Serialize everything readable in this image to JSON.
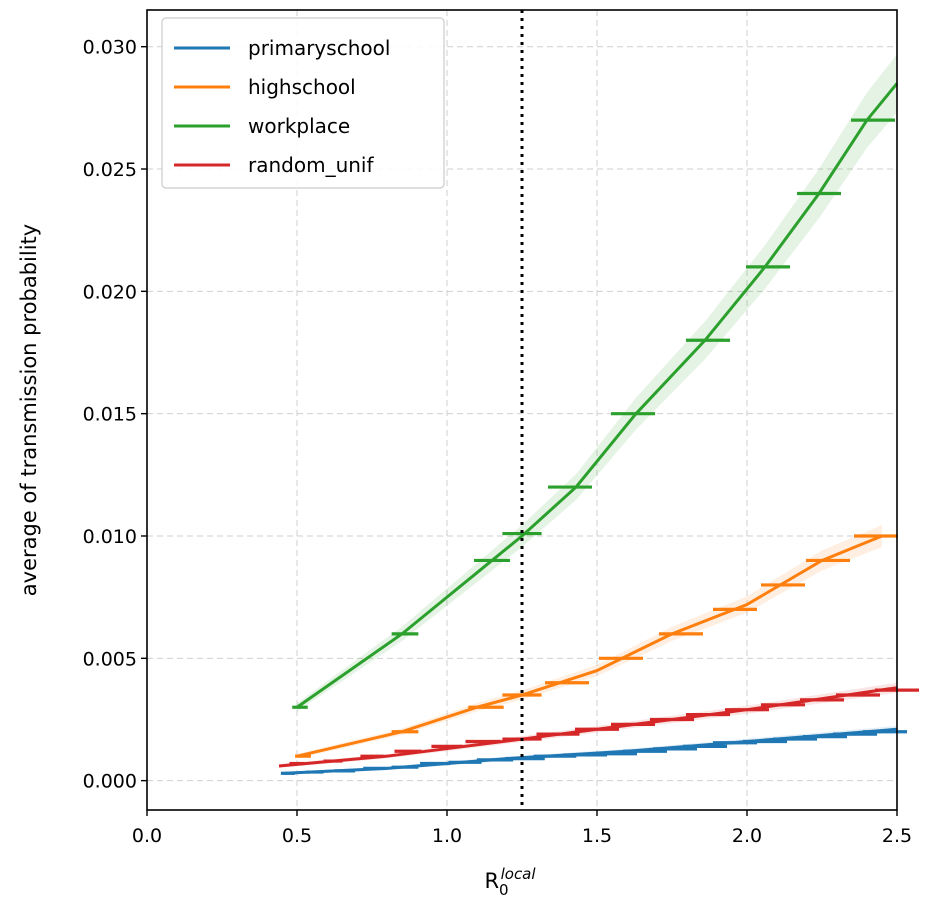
{
  "chart_data": {
    "type": "line",
    "xlabel": "R",
    "xlabel_sub": "0",
    "xlabel_sup": "local",
    "ylabel": "average of transmission probability",
    "xlim": [
      0.0,
      2.5
    ],
    "ylim": [
      -0.0012,
      0.0315
    ],
    "x_ticks": [
      0.0,
      0.5,
      1.0,
      1.5,
      2.0,
      2.5
    ],
    "x_tick_labels": [
      "0.0",
      "0.5",
      "1.0",
      "1.5",
      "2.0",
      "2.5"
    ],
    "y_ticks": [
      0.0,
      0.005,
      0.01,
      0.015,
      0.02,
      0.025,
      0.03
    ],
    "y_tick_labels": [
      "0.000",
      "0.005",
      "0.010",
      "0.015",
      "0.020",
      "0.025",
      "0.030"
    ],
    "grid": true,
    "legend_position": "top-left",
    "vline": {
      "x": 1.25,
      "style": "dotted",
      "color": "#000000"
    },
    "series": [
      {
        "name": "primaryschool",
        "color": "#1f77b4",
        "line": [
          [
            0.46,
            0.0003
          ],
          [
            0.8,
            0.0005
          ],
          [
            1.2,
            0.0009
          ],
          [
            1.6,
            0.0012
          ],
          [
            2.0,
            0.0016
          ],
          [
            2.5,
            0.0021
          ]
        ],
        "markers": [
          [
            0.47,
            0.0003
          ],
          [
            0.56,
            0.00035
          ],
          [
            0.66,
            0.0004
          ],
          [
            0.76,
            0.0005
          ],
          [
            0.86,
            0.00055
          ],
          [
            0.96,
            0.0007
          ],
          [
            1.06,
            0.00075
          ],
          [
            1.16,
            0.00085
          ],
          [
            1.26,
            0.0009
          ],
          [
            1.36,
            0.001
          ],
          [
            1.46,
            0.00105
          ],
          [
            1.56,
            0.0011
          ],
          [
            1.66,
            0.0012
          ],
          [
            1.76,
            0.0013
          ],
          [
            1.86,
            0.0014
          ],
          [
            1.96,
            0.00155
          ],
          [
            2.06,
            0.0016
          ],
          [
            2.16,
            0.0017
          ],
          [
            2.26,
            0.0018
          ],
          [
            2.36,
            0.0019
          ],
          [
            2.46,
            0.002
          ]
        ]
      },
      {
        "name": "highschool",
        "color": "#ff7f0e",
        "line": [
          [
            0.5,
            0.001
          ],
          [
            0.85,
            0.002
          ],
          [
            1.1,
            0.003
          ],
          [
            1.25,
            0.0035
          ],
          [
            1.5,
            0.0045
          ],
          [
            1.75,
            0.006
          ],
          [
            2.0,
            0.0072
          ],
          [
            2.25,
            0.009
          ],
          [
            2.45,
            0.01
          ]
        ],
        "markers": [
          [
            0.52,
            0.001
          ],
          [
            0.86,
            0.002
          ],
          [
            1.13,
            0.003
          ],
          [
            1.25,
            0.0035
          ],
          [
            1.4,
            0.004
          ],
          [
            1.58,
            0.005
          ],
          [
            1.78,
            0.006
          ],
          [
            1.96,
            0.007
          ],
          [
            2.12,
            0.008
          ],
          [
            2.27,
            0.009
          ],
          [
            2.43,
            0.01
          ]
        ]
      },
      {
        "name": "workplace",
        "color": "#2ca02c",
        "line": [
          [
            0.5,
            0.003
          ],
          [
            0.85,
            0.006
          ],
          [
            1.15,
            0.009
          ],
          [
            1.25,
            0.01
          ],
          [
            1.43,
            0.012
          ],
          [
            1.63,
            0.015
          ],
          [
            1.86,
            0.018
          ],
          [
            2.06,
            0.021
          ],
          [
            2.24,
            0.024
          ],
          [
            2.4,
            0.027
          ],
          [
            2.5,
            0.0285
          ]
        ],
        "markers": [
          [
            0.51,
            0.003
          ],
          [
            0.86,
            0.006
          ],
          [
            1.15,
            0.009
          ],
          [
            1.25,
            0.0101
          ],
          [
            1.41,
            0.012
          ],
          [
            1.62,
            0.015
          ],
          [
            1.87,
            0.018
          ],
          [
            2.07,
            0.021
          ],
          [
            2.24,
            0.024
          ],
          [
            2.42,
            0.027
          ]
        ]
      },
      {
        "name": "random_unif",
        "color": "#d62728",
        "line": [
          [
            0.44,
            0.0006
          ],
          [
            0.8,
            0.001
          ],
          [
            1.25,
            0.0017
          ],
          [
            1.75,
            0.0025
          ],
          [
            2.0,
            0.0029
          ],
          [
            2.5,
            0.0038
          ]
        ],
        "markers": [
          [
            0.5,
            0.0007
          ],
          [
            0.62,
            0.0008
          ],
          [
            0.75,
            0.001
          ],
          [
            0.87,
            0.0012
          ],
          [
            1.0,
            0.0014
          ],
          [
            1.12,
            0.0016
          ],
          [
            1.25,
            0.0017
          ],
          [
            1.37,
            0.0019
          ],
          [
            1.5,
            0.0021
          ],
          [
            1.62,
            0.0023
          ],
          [
            1.75,
            0.0025
          ],
          [
            1.87,
            0.0027
          ],
          [
            2.0,
            0.0029
          ],
          [
            2.12,
            0.0031
          ],
          [
            2.25,
            0.0033
          ],
          [
            2.37,
            0.0035
          ],
          [
            2.5,
            0.0037
          ]
        ]
      }
    ]
  }
}
